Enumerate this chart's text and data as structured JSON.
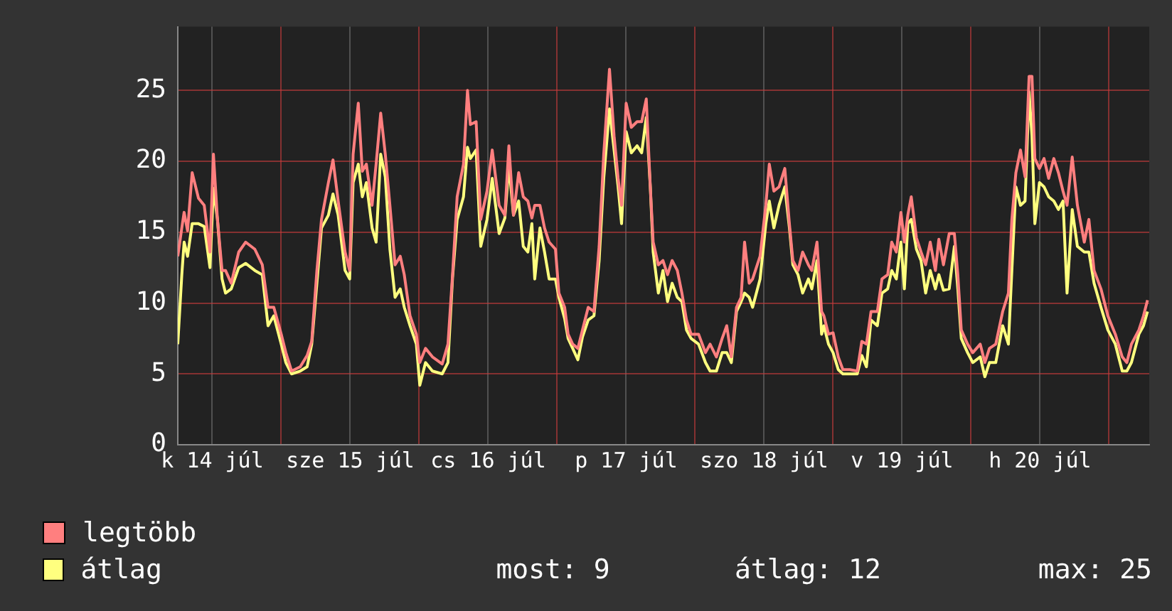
{
  "chart_data": {
    "type": "line",
    "xlim": [
      "--07-14T06:00",
      "--07-21T07:00"
    ],
    "ylim": [
      0,
      29.5
    ],
    "yticks": [
      0,
      5,
      10,
      15,
      20,
      25
    ],
    "xticks": [
      {
        "value": "--07-14T12:00",
        "label": "k 14 júl"
      },
      {
        "value": "--07-15T00:00",
        "label": null
      },
      {
        "value": "--07-15T12:00",
        "label": "sze 15 júl"
      },
      {
        "value": "--07-16T00:00",
        "label": null
      },
      {
        "value": "--07-16T12:00",
        "label": "cs 16 júl"
      },
      {
        "value": "--07-17T00:00",
        "label": null
      },
      {
        "value": "--07-17T12:00",
        "label": "p 17 júl"
      },
      {
        "value": "--07-18T00:00",
        "label": null
      },
      {
        "value": "--07-18T12:00",
        "label": "szo 18 júl"
      },
      {
        "value": "--07-19T00:00",
        "label": null
      },
      {
        "value": "--07-19T12:00",
        "label": "v 19 júl"
      },
      {
        "value": "--07-20T00:00",
        "label": null
      },
      {
        "value": "--07-20T12:00",
        "label": "h 20 júl"
      },
      {
        "value": "--07-21T00:00",
        "label": null
      }
    ],
    "grid": true,
    "legend": "bottom",
    "marker": "none",
    "line_style": "solid",
    "x": [
      "--07-14T06:00",
      "--07-14T06:42",
      "--07-14T07:06",
      "--07-14T07:42",
      "--07-14T08:30",
      "--07-14T09:36",
      "--07-14T10:36",
      "--07-14T11:36",
      "--07-14T12:12",
      "--07-14T12:54",
      "--07-14T13:42",
      "--07-14T14:18",
      "--07-14T15:18",
      "--07-14T16:36",
      "--07-14T17:48",
      "--07-14T19:24",
      "--07-14T20:42",
      "--07-14T21:42",
      "--07-14T22:42",
      "--07-15T00:00",
      "--07-15T00:48",
      "--07-15T01:48",
      "--07-15T03:18",
      "--07-15T04:30",
      "--07-15T05:18",
      "--07-15T06:12",
      "--07-15T07:00",
      "--07-15T08:12",
      "--07-15T09:00",
      "--07-15T09:54",
      "--07-15T11:06",
      "--07-15T11:54",
      "--07-15T12:30",
      "--07-15T13:24",
      "--07-15T14:06",
      "--07-15T14:48",
      "--07-15T15:48",
      "--07-15T16:30",
      "--07-15T17:18",
      "--07-15T18:06",
      "--07-15T18:54",
      "--07-15T19:48",
      "--07-15T20:42",
      "--07-15T21:24",
      "--07-15T22:24",
      "--07-15T23:30",
      "--07-16T00:06",
      "--07-16T01:06",
      "--07-16T02:18",
      "--07-16T04:00",
      "--07-16T05:00",
      "--07-16T05:48",
      "--07-16T06:36",
      "--07-16T07:42",
      "--07-16T08:24",
      "--07-16T08:54",
      "--07-16T09:54",
      "--07-16T10:42",
      "--07-16T11:48",
      "--07-16T12:42",
      "--07-16T13:54",
      "--07-16T14:54",
      "--07-16T15:36",
      "--07-16T16:24",
      "--07-16T17:18",
      "--07-16T18:06",
      "--07-16T18:54",
      "--07-16T19:36",
      "--07-16T20:06",
      "--07-16T21:00",
      "--07-16T21:48",
      "--07-16T22:36",
      "--07-16T23:42",
      "--07-17T00:18",
      "--07-17T01:18",
      "--07-17T01:54",
      "--07-17T02:42",
      "--07-17T03:36",
      "--07-17T04:24",
      "--07-17T05:24",
      "--07-17T06:24",
      "--07-17T07:18",
      "--07-17T08:06",
      "--07-17T09:06",
      "--07-17T09:54",
      "--07-17T10:36",
      "--07-17T11:12",
      "--07-17T12:00",
      "--07-17T12:54",
      "--07-17T13:54",
      "--07-17T14:42",
      "--07-17T15:30",
      "--07-17T16:12",
      "--07-17T16:42",
      "--07-17T17:36",
      "--07-17T18:24",
      "--07-17T19:12",
      "--07-17T20:00",
      "--07-17T20:54",
      "--07-17T21:42",
      "--07-17T22:30",
      "--07-17T23:18",
      "--07-18T00:36",
      "--07-18T01:48",
      "--07-18T02:36",
      "--07-18T03:42",
      "--07-18T04:42",
      "--07-18T05:30",
      "--07-18T06:18",
      "--07-18T07:12",
      "--07-18T08:00",
      "--07-18T08:36",
      "--07-18T09:24",
      "--07-18T10:00",
      "--07-18T11:18",
      "--07-18T12:18",
      "--07-18T12:54",
      "--07-18T13:42",
      "--07-18T14:36",
      "--07-18T15:36",
      "--07-18T16:24",
      "--07-18T17:00",
      "--07-18T17:54",
      "--07-18T18:42",
      "--07-18T19:42",
      "--07-18T20:18",
      "--07-18T21:12",
      "--07-18T22:00",
      "--07-18T22:24",
      "--07-18T23:12",
      "--07-19T00:00",
      "--07-19T00:54",
      "--07-19T01:42",
      "--07-19T02:54",
      "--07-19T04:12",
      "--07-19T05:00",
      "--07-19T05:48",
      "--07-19T06:36",
      "--07-19T07:42",
      "--07-19T08:30",
      "--07-19T09:30",
      "--07-19T10:12",
      "--07-19T11:00",
      "--07-19T11:48",
      "--07-19T12:24",
      "--07-19T13:00",
      "--07-19T13:36",
      "--07-19T14:30",
      "--07-19T15:18",
      "--07-19T16:06",
      "--07-19T16:54",
      "--07-19T17:48",
      "--07-19T18:24",
      "--07-19T19:12",
      "--07-19T20:12",
      "--07-19T21:06",
      "--07-19T21:42",
      "--07-19T22:18",
      "--07-19T23:24",
      "--07-20T00:18",
      "--07-20T01:36",
      "--07-20T02:24",
      "--07-20T03:12",
      "--07-20T04:18",
      "--07-20T05:30",
      "--07-20T06:30",
      "--07-20T07:06",
      "--07-20T07:48",
      "--07-20T08:36",
      "--07-20T09:24",
      "--07-20T10:06",
      "--07-20T10:36",
      "--07-20T11:06",
      "--07-20T11:54",
      "--07-20T12:42",
      "--07-20T13:30",
      "--07-20T14:24",
      "--07-20T15:12",
      "--07-20T16:00",
      "--07-20T16:42",
      "--07-20T17:36",
      "--07-20T18:30",
      "--07-20T19:42",
      "--07-20T20:30",
      "--07-20T21:24",
      "--07-20T22:36",
      "--07-20T23:48",
      "--07-21T01:06",
      "--07-21T02:18",
      "--07-21T03:06",
      "--07-21T03:54",
      "--07-21T05:12",
      "--07-21T06:00",
      "--07-21T06:42"
    ],
    "series": [
      {
        "name": "legtöbb",
        "color": "#ff7f7f",
        "values": [
          13.3,
          15.3,
          16.4,
          15.1,
          19.2,
          17.4,
          16.9,
          13.6,
          20.5,
          15.9,
          12.3,
          12.3,
          11.4,
          13.6,
          14.3,
          13.8,
          12.7,
          9.7,
          9.7,
          7.8,
          6.5,
          5.2,
          5.5,
          6.3,
          7.3,
          12.3,
          15.9,
          18.5,
          20.1,
          17.2,
          13.6,
          12.3,
          20.5,
          24.1,
          19.3,
          19.8,
          16.9,
          19.8,
          23.4,
          20.5,
          16.9,
          12.7,
          13.3,
          12.0,
          9.1,
          7.8,
          5.8,
          6.8,
          6.2,
          5.7,
          7.1,
          12.0,
          17.5,
          19.8,
          25.0,
          22.6,
          22.8,
          15.9,
          17.9,
          20.8,
          16.9,
          16.2,
          21.1,
          16.2,
          19.2,
          17.5,
          17.2,
          16.0,
          16.9,
          16.9,
          15.3,
          14.3,
          13.8,
          10.7,
          9.7,
          7.8,
          7.1,
          6.8,
          8.1,
          9.7,
          9.4,
          14.0,
          20.5,
          26.5,
          21.8,
          18.8,
          16.9,
          24.1,
          22.4,
          22.8,
          22.8,
          24.4,
          18.2,
          14.3,
          12.7,
          13.0,
          12.0,
          13.0,
          12.3,
          10.7,
          8.8,
          7.8,
          7.8,
          6.5,
          7.1,
          6.2,
          7.5,
          8.4,
          6.2,
          9.7,
          10.4,
          14.3,
          11.4,
          11.7,
          13.3,
          16.9,
          19.8,
          17.9,
          18.2,
          19.5,
          15.6,
          13.0,
          12.3,
          13.6,
          12.7,
          12.3,
          14.3,
          9.4,
          9.1,
          7.8,
          7.9,
          6.2,
          5.3,
          5.3,
          5.2,
          7.3,
          7.1,
          9.4,
          9.4,
          11.7,
          12.0,
          14.3,
          13.6,
          16.4,
          14.3,
          16.2,
          17.5,
          14.6,
          13.6,
          12.7,
          14.3,
          12.3,
          14.5,
          12.7,
          14.9,
          14.9,
          12.0,
          8.1,
          7.1,
          6.5,
          7.1,
          5.8,
          6.8,
          7.1,
          9.4,
          10.7,
          15.9,
          19.2,
          20.8,
          18.9,
          26.0,
          26.0,
          20.2,
          19.5,
          20.2,
          18.8,
          20.2,
          19.2,
          17.9,
          16.9,
          20.3,
          16.9,
          14.3,
          15.9,
          12.3,
          11.0,
          9.1,
          7.8,
          6.2,
          5.8,
          7.1,
          8.1,
          9.1,
          10.2
        ]
      },
      {
        "name": "átlag",
        "color": "#ffff7f",
        "values": [
          7.1,
          12.0,
          14.3,
          13.3,
          15.6,
          15.6,
          15.4,
          12.5,
          18.1,
          15.9,
          11.7,
          10.7,
          11.0,
          12.5,
          12.8,
          12.3,
          12.0,
          8.4,
          9.1,
          7.1,
          5.8,
          5.0,
          5.2,
          5.5,
          7.1,
          11.4,
          15.3,
          16.2,
          17.7,
          16.2,
          12.3,
          11.7,
          18.5,
          19.8,
          17.5,
          18.5,
          15.3,
          14.3,
          20.5,
          18.9,
          13.8,
          10.4,
          11.0,
          9.7,
          8.4,
          7.1,
          4.2,
          5.8,
          5.2,
          5.0,
          5.8,
          11.8,
          15.9,
          17.5,
          21.0,
          20.2,
          20.8,
          14.0,
          15.9,
          18.8,
          14.9,
          16.0,
          19.7,
          16.2,
          17.2,
          14.0,
          13.6,
          15.6,
          11.7,
          15.3,
          13.6,
          11.7,
          11.7,
          10.4,
          8.9,
          7.5,
          6.8,
          6.0,
          7.6,
          8.8,
          9.1,
          13.0,
          18.8,
          23.7,
          20.8,
          18.2,
          15.6,
          22.1,
          20.6,
          21.1,
          20.6,
          23.1,
          18.2,
          13.6,
          10.7,
          12.3,
          10.1,
          11.4,
          10.4,
          10.1,
          8.1,
          7.5,
          7.1,
          5.8,
          5.2,
          5.2,
          6.5,
          6.5,
          5.8,
          9.4,
          10.1,
          10.7,
          10.4,
          9.7,
          11.7,
          15.6,
          17.2,
          15.3,
          16.9,
          18.2,
          15.3,
          12.7,
          12.0,
          10.7,
          11.7,
          11.0,
          13.0,
          7.8,
          8.4,
          7.1,
          6.5,
          5.3,
          5.0,
          5.0,
          5.0,
          6.3,
          5.5,
          8.8,
          8.4,
          10.7,
          11.0,
          12.3,
          11.7,
          14.3,
          11.0,
          15.6,
          15.9,
          13.8,
          13.0,
          10.7,
          12.3,
          11.0,
          12.0,
          10.9,
          11.0,
          14.0,
          11.0,
          7.5,
          6.5,
          5.8,
          6.2,
          4.8,
          5.8,
          5.8,
          8.4,
          7.1,
          12.3,
          18.2,
          16.9,
          17.2,
          24.9,
          21.8,
          15.6,
          18.5,
          18.2,
          17.5,
          17.2,
          16.6,
          17.2,
          10.7,
          16.6,
          14.0,
          13.6,
          13.6,
          11.4,
          9.7,
          8.1,
          7.1,
          5.2,
          5.2,
          5.8,
          7.8,
          8.4,
          9.4
        ]
      }
    ],
    "annotations": [
      "most: 9",
      "átlag: 12",
      "max: 25"
    ]
  }
}
